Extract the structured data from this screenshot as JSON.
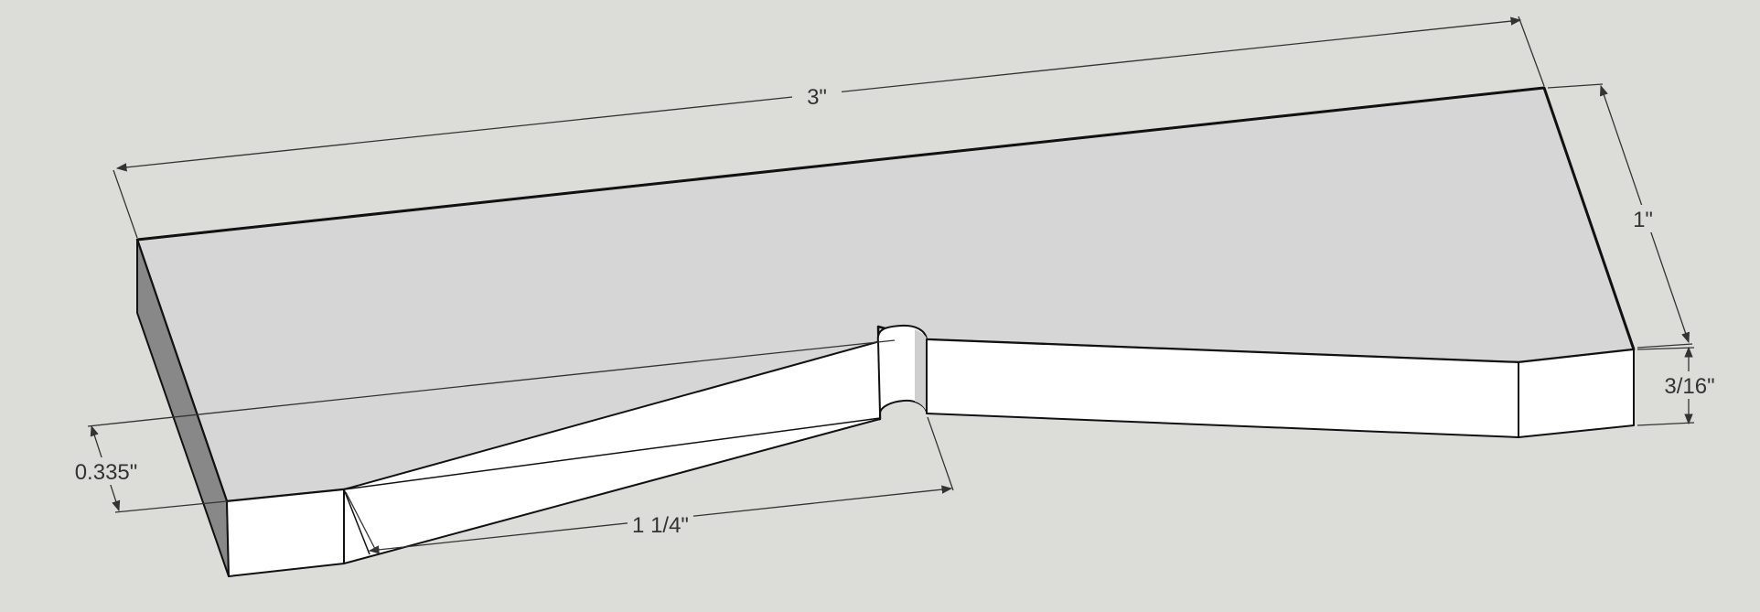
{
  "colors": {
    "background": "#dcdcd8",
    "top_face": "#d6d6d6",
    "front_face": "#ffffff",
    "dark_face": "#888888",
    "edge": "#111111",
    "dimension_line": "#333333"
  },
  "dimensions": {
    "length": "3\"",
    "width": "1\"",
    "thickness": "3/16\"",
    "notch_offset": "0.335\"",
    "notch_length": "1 1/4\""
  }
}
